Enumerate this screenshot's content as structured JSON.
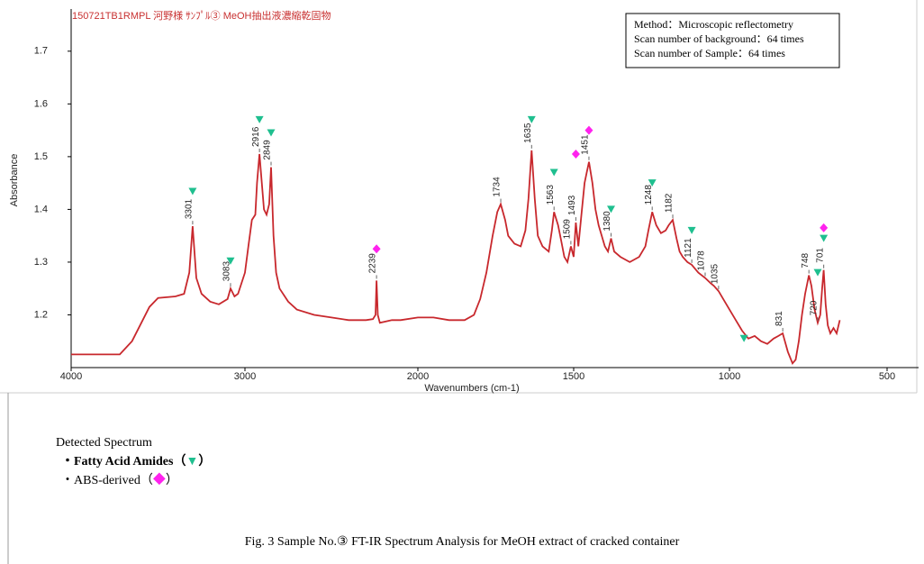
{
  "chart_data": {
    "type": "line",
    "title": "150721TB1RMPL 河野様 ｻﾝﾌﾟﾙ③ MeOH抽出液濃縮乾固物",
    "x_label": "Wavenumbers (cm-1)",
    "y_label": "Absorbance",
    "info": [
      "Method：Microscopic reflectometry",
      "Scan number of background：64 times",
      "Scan number of Sample：64 times"
    ],
    "xlim": [
      4000,
      400
    ],
    "xticks": [
      4000,
      3000,
      2000,
      1500,
      1000,
      500
    ],
    "ylim": [
      1.1,
      1.78
    ],
    "yticks": [
      1.2,
      1.3,
      1.4,
      1.5,
      1.6,
      1.7
    ],
    "x": [
      4000,
      3800,
      3720,
      3650,
      3550,
      3500,
      3400,
      3350,
      3320,
      3301,
      3280,
      3250,
      3200,
      3150,
      3100,
      3083,
      3060,
      3040,
      3000,
      2980,
      2960,
      2940,
      2930,
      2916,
      2900,
      2890,
      2875,
      2860,
      2849,
      2835,
      2820,
      2800,
      2750,
      2700,
      2600,
      2500,
      2400,
      2300,
      2260,
      2245,
      2239,
      2232,
      2220,
      2150,
      2100,
      2000,
      1950,
      1900,
      1850,
      1820,
      1800,
      1780,
      1760,
      1745,
      1734,
      1720,
      1710,
      1690,
      1670,
      1655,
      1645,
      1635,
      1625,
      1615,
      1600,
      1580,
      1570,
      1563,
      1550,
      1540,
      1530,
      1520,
      1509,
      1500,
      1493,
      1485,
      1475,
      1465,
      1458,
      1451,
      1440,
      1430,
      1420,
      1400,
      1390,
      1380,
      1370,
      1350,
      1320,
      1290,
      1270,
      1260,
      1248,
      1235,
      1220,
      1205,
      1195,
      1182,
      1170,
      1160,
      1150,
      1135,
      1121,
      1100,
      1078,
      1060,
      1050,
      1035,
      1020,
      1000,
      980,
      960,
      940,
      920,
      900,
      880,
      860,
      845,
      831,
      815,
      800,
      790,
      780,
      770,
      760,
      748,
      740,
      730,
      720,
      712,
      706,
      701,
      695,
      688,
      680,
      670,
      660,
      650
    ],
    "series": [
      {
        "name": "Spectrum",
        "color": "#c8282d",
        "values": [
          1.125,
          1.125,
          1.125,
          1.15,
          1.215,
          1.232,
          1.235,
          1.24,
          1.28,
          1.368,
          1.27,
          1.24,
          1.225,
          1.22,
          1.23,
          1.25,
          1.235,
          1.24,
          1.28,
          1.33,
          1.38,
          1.39,
          1.45,
          1.505,
          1.44,
          1.4,
          1.39,
          1.41,
          1.48,
          1.35,
          1.28,
          1.25,
          1.225,
          1.21,
          1.2,
          1.195,
          1.19,
          1.19,
          1.192,
          1.2,
          1.265,
          1.2,
          1.185,
          1.19,
          1.19,
          1.195,
          1.195,
          1.19,
          1.19,
          1.2,
          1.23,
          1.28,
          1.35,
          1.395,
          1.41,
          1.38,
          1.35,
          1.335,
          1.33,
          1.36,
          1.42,
          1.512,
          1.42,
          1.35,
          1.33,
          1.32,
          1.36,
          1.395,
          1.37,
          1.34,
          1.31,
          1.3,
          1.33,
          1.31,
          1.375,
          1.33,
          1.39,
          1.45,
          1.47,
          1.49,
          1.45,
          1.4,
          1.37,
          1.33,
          1.32,
          1.345,
          1.32,
          1.31,
          1.3,
          1.31,
          1.33,
          1.36,
          1.395,
          1.37,
          1.355,
          1.36,
          1.37,
          1.38,
          1.345,
          1.32,
          1.31,
          1.3,
          1.295,
          1.28,
          1.27,
          1.26,
          1.255,
          1.245,
          1.23,
          1.21,
          1.19,
          1.17,
          1.155,
          1.16,
          1.15,
          1.145,
          1.155,
          1.16,
          1.165,
          1.13,
          1.108,
          1.115,
          1.15,
          1.2,
          1.24,
          1.275,
          1.255,
          1.21,
          1.185,
          1.2,
          1.25,
          1.285,
          1.22,
          1.18,
          1.165,
          1.175,
          1.165,
          1.19
        ]
      }
    ],
    "peak_labels": [
      3301,
      3083,
      2916,
      2849,
      2239,
      1734,
      1635,
      1563,
      1509,
      1493,
      1451,
      1380,
      1248,
      1182,
      1121,
      1078,
      1035,
      831,
      748,
      720,
      701
    ],
    "markers": [
      {
        "name": "Fatty Acid Amides",
        "shape": "triangle",
        "color": "#1fbf8f",
        "x": [
          3301,
          3083,
          2916,
          2849,
          1635,
          1563,
          1380,
          1248,
          1121,
          954,
          720,
          701
        ],
        "y": [
          1.434,
          1.302,
          1.57,
          1.545,
          1.57,
          1.47,
          1.4,
          1.45,
          1.36,
          1.155,
          1.28,
          1.345
        ]
      },
      {
        "name": "ABS-derived",
        "shape": "diamond",
        "color": "#ff22ee",
        "x": [
          2239,
          1493,
          1451,
          701
        ],
        "y": [
          1.325,
          1.505,
          1.55,
          1.365
        ]
      }
    ]
  },
  "notes": {
    "heading": "Detected Spectrum",
    "items": [
      {
        "label": "・Fatty Acid Amides（",
        "symbol": "▼",
        "end": "）"
      },
      {
        "label": "・ABS-derived（",
        "symbol": "◆",
        "end": "）"
      }
    ],
    "caption": "Fig. 3   Sample No.③ FT-IR Spectrum Analysis for MeOH extract of cracked container"
  }
}
